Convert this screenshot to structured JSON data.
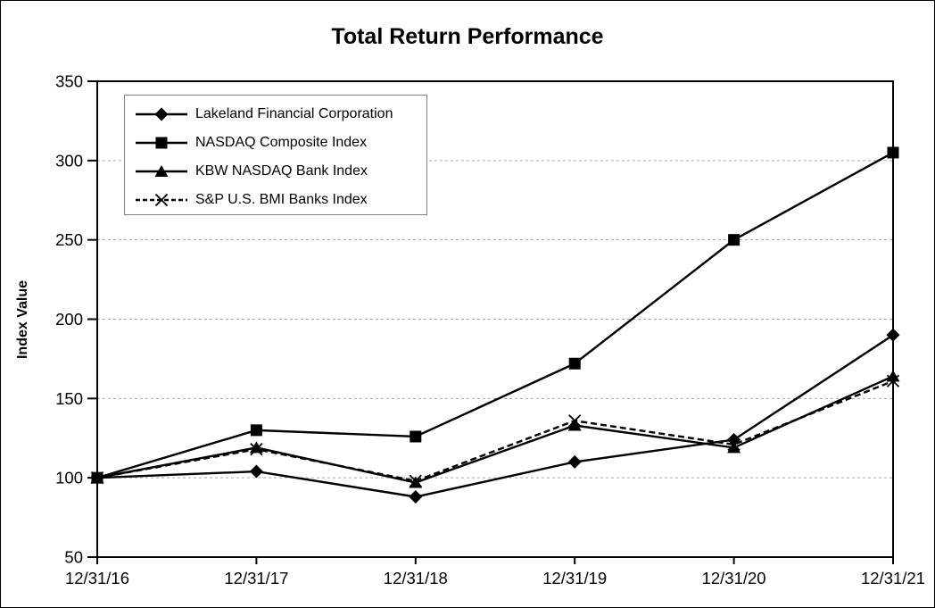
{
  "chart_data": {
    "type": "line",
    "title": "Total Return Performance",
    "xlabel": "",
    "ylabel": "Index Value",
    "categories": [
      "12/31/16",
      "12/31/17",
      "12/31/18",
      "12/31/19",
      "12/31/20",
      "12/31/21"
    ],
    "series": [
      {
        "name": "Lakeland Financial Corporation",
        "marker": "diamond",
        "line_style": "solid",
        "color": "#000000",
        "values": [
          100,
          104,
          88,
          110,
          124,
          190
        ]
      },
      {
        "name": "NASDAQ Composite Index",
        "marker": "square",
        "line_style": "solid",
        "color": "#000000",
        "values": [
          100,
          130,
          126,
          172,
          250,
          305
        ]
      },
      {
        "name": "KBW NASDAQ Bank Index",
        "marker": "triangle",
        "line_style": "solid",
        "color": "#000000",
        "values": [
          100,
          119,
          97,
          133,
          119,
          164
        ]
      },
      {
        "name": "S&P U.S. BMI Banks Index",
        "marker": "x",
        "line_style": "dashed",
        "color": "#000000",
        "values": [
          100,
          118,
          98,
          136,
          121,
          161
        ]
      }
    ],
    "ylim": [
      50,
      350
    ],
    "y_ticks": [
      50,
      100,
      150,
      200,
      250,
      300,
      350
    ],
    "grid": "horizontal-dashed",
    "gridline_color": "#a6a6a6",
    "axis_color": "#000000",
    "legend_position": "top-left-inside",
    "legend_border_color": "#808080",
    "background_color": "#ffffff"
  }
}
